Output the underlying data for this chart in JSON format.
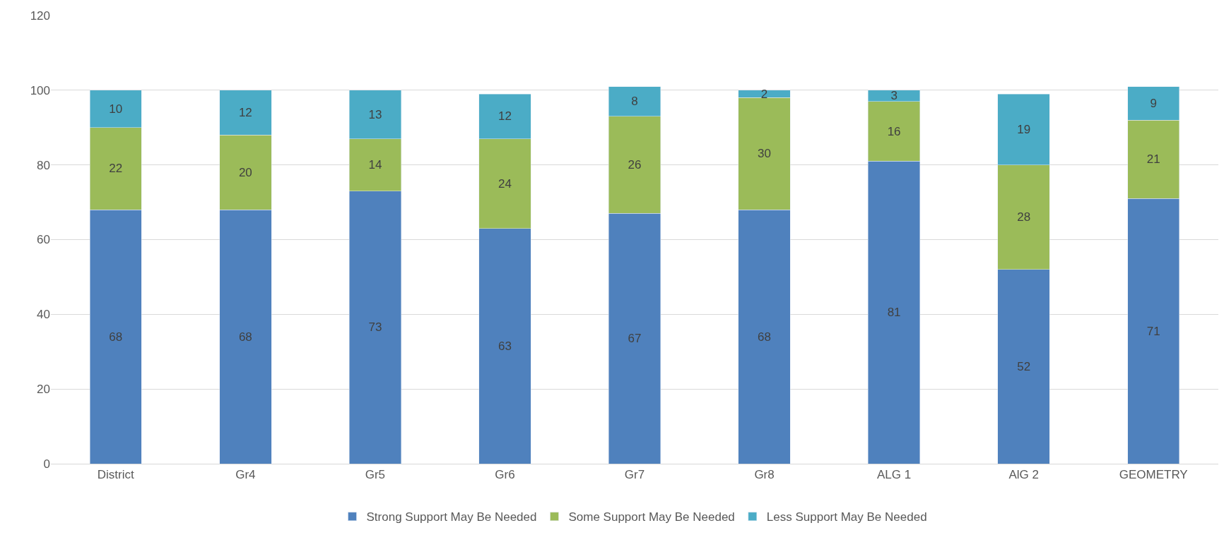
{
  "chart_data": {
    "type": "bar",
    "stacked": true,
    "categories": [
      "District",
      "Gr4",
      "Gr5",
      "Gr6",
      "Gr7",
      "Gr8",
      "ALG 1",
      "AlG 2",
      "GEOMETRY"
    ],
    "series": [
      {
        "name": "Strong Support May Be Needed",
        "color": "#4f81bd",
        "values": [
          68,
          68,
          73,
          63,
          67,
          68,
          81,
          52,
          71
        ]
      },
      {
        "name": "Some Support May Be Needed",
        "color": "#9bbb59",
        "values": [
          22,
          20,
          14,
          24,
          26,
          30,
          16,
          28,
          21
        ]
      },
      {
        "name": "Less Support May Be Needed",
        "color": "#4bacc6",
        "values": [
          10,
          12,
          13,
          12,
          8,
          2,
          3,
          19,
          9
        ]
      }
    ],
    "ylim": [
      0,
      120
    ],
    "yticks": [
      0,
      20,
      40,
      60,
      80,
      100,
      120
    ],
    "grid": "y",
    "legend": "bottom",
    "data_labels": true
  }
}
